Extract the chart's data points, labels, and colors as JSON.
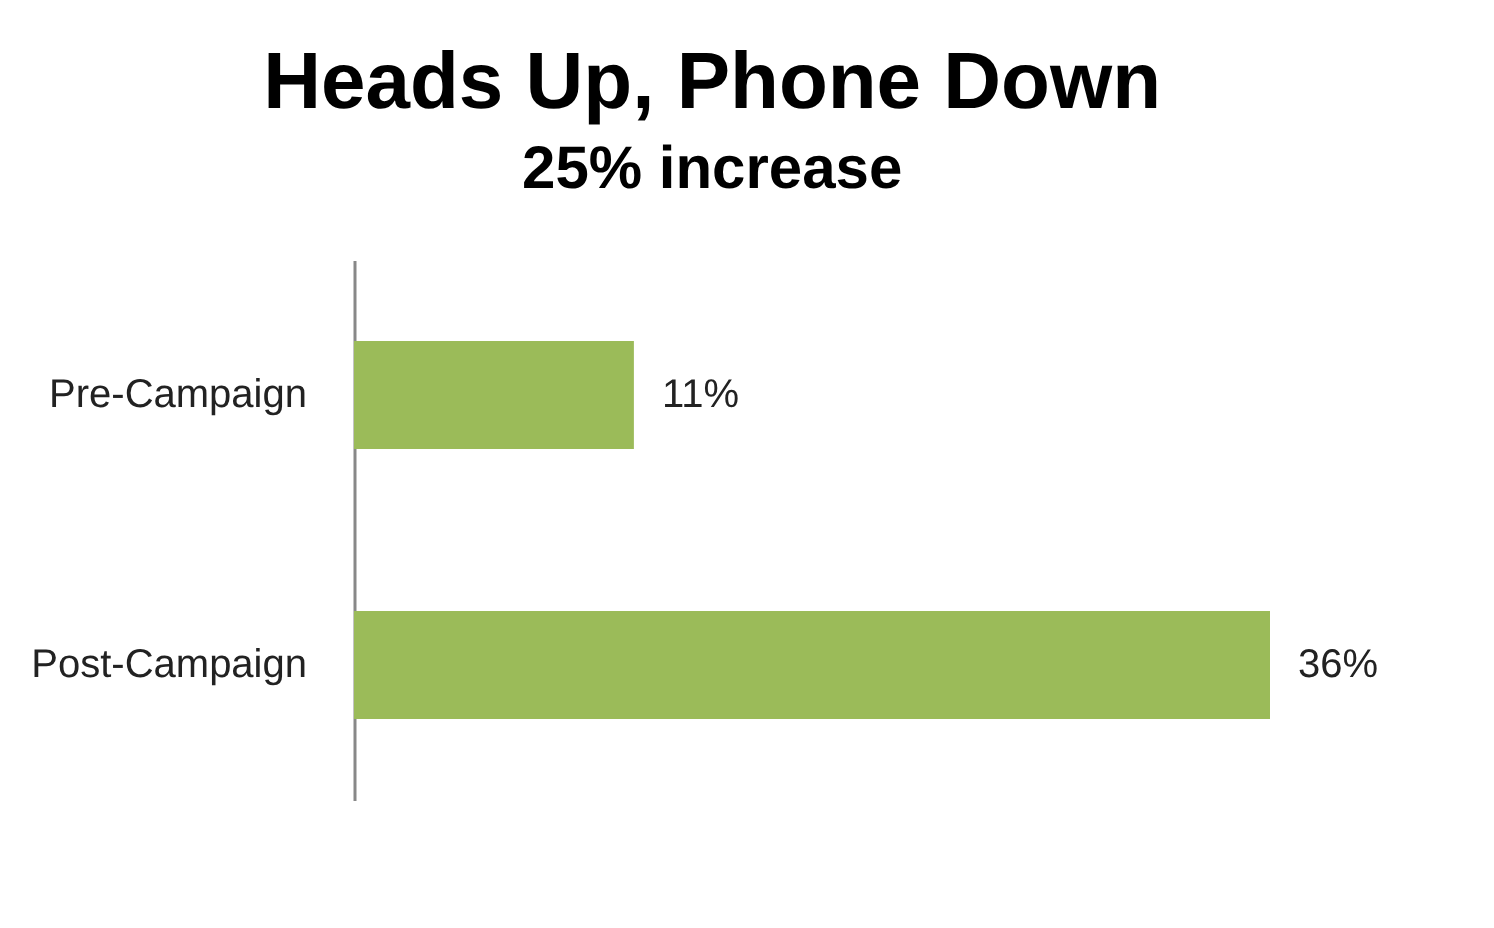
{
  "chart_data": {
    "type": "bar",
    "orientation": "horizontal",
    "title": "Heads Up, Phone Down",
    "subtitle": "25% increase",
    "categories": [
      "Pre-Campaign",
      "Post-Campaign"
    ],
    "values": [
      11,
      36
    ],
    "value_labels": [
      "11%",
      "36%"
    ],
    "color": "#9bbb59"
  }
}
